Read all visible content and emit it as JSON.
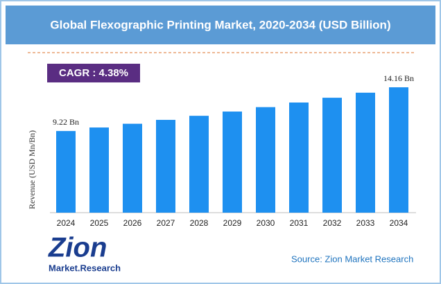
{
  "chart_data": {
    "type": "bar",
    "title": "Global Flexographic Printing Market, 2020-2034 (USD Billion)",
    "annotation": "CAGR : 4.38%",
    "y_label": "Revenue (USD Mn/Bn)",
    "source": "Source: Zion Market Research",
    "logo": {
      "brand": "Zion",
      "subtitle": "Market.Research"
    },
    "categories": [
      "2024",
      "2025",
      "2026",
      "2027",
      "2028",
      "2029",
      "2030",
      "2031",
      "2032",
      "2033",
      "2034"
    ],
    "values": [
      9.22,
      9.62,
      10.04,
      10.48,
      10.94,
      11.42,
      11.92,
      12.44,
      12.98,
      13.55,
      14.16
    ],
    "value_labels": [
      "9.22 Bn",
      null,
      null,
      null,
      null,
      null,
      null,
      null,
      null,
      null,
      "14.16 Bn"
    ],
    "color": "#1e90f0",
    "ylim": [
      0,
      16
    ]
  }
}
